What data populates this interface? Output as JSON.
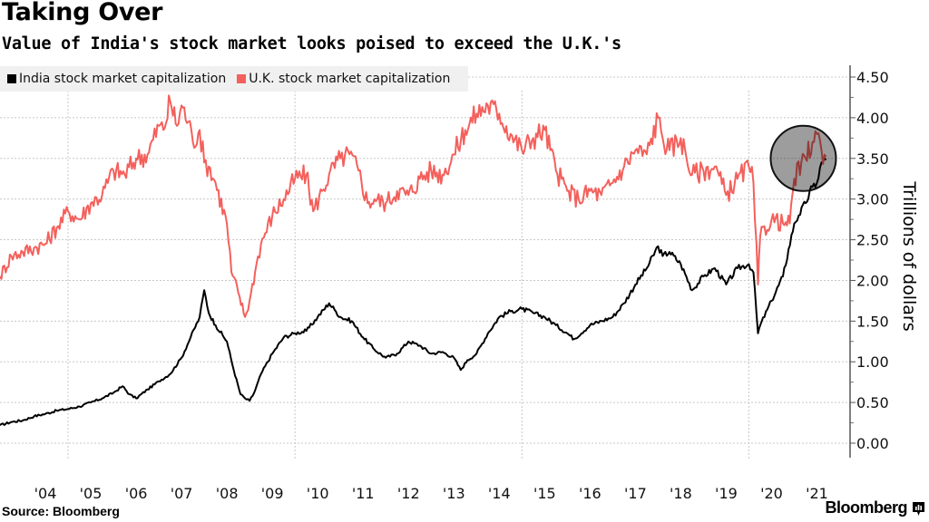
{
  "header": {
    "title": "Taking Over",
    "subtitle": "Value of India's stock market looks poised to exceed the U.K.'s"
  },
  "footer": {
    "source": "Source: Bloomberg",
    "brand": "Bloomberg",
    "brand_icon": "bloomberg-chart-icon"
  },
  "colors": {
    "india": "#000000",
    "uk": "#f4605c",
    "highlight_fill": "#8c8c8c",
    "highlight_stroke": "#111111",
    "grid": "#c8c8c8",
    "legend_bg": "#f0f0f0"
  },
  "chart_data": {
    "type": "line",
    "title": "Taking Over",
    "subtitle": "Value of India's stock market looks poised to exceed the U.K.'s",
    "xlabel": "",
    "ylabel": "Trillions of dollars",
    "ylim": [
      0,
      4.5
    ],
    "xlim": [
      2003.5,
      2021.85
    ],
    "grid": true,
    "legend_position": "top-left",
    "y_ticks": [
      "0.00",
      "0.50",
      "1.00",
      "1.50",
      "2.00",
      "2.50",
      "3.00",
      "3.50",
      "4.00",
      "4.50"
    ],
    "y_tick_values": [
      0,
      0.5,
      1,
      1.5,
      2,
      2.5,
      3,
      3.5,
      4,
      4.5
    ],
    "x_ticks": [
      "'04",
      "'05",
      "'06",
      "'07",
      "'08",
      "'09",
      "'10",
      "'11",
      "'12",
      "'13",
      "'14",
      "'15",
      "'16",
      "'17",
      "'18",
      "'19",
      "'20",
      "'21"
    ],
    "x_tick_years": [
      2004,
      2005,
      2006,
      2007,
      2008,
      2009,
      2010,
      2011,
      2012,
      2013,
      2014,
      2015,
      2016,
      2017,
      2018,
      2019,
      2020,
      2021
    ],
    "annotation": {
      "type": "circle-highlight",
      "center_x_year": 2021.2,
      "center_y_value": 3.5,
      "description": "Gray circle highlighting the 2021 convergence"
    },
    "series": [
      {
        "name": "India stock market capitalization",
        "color": "#000000",
        "x": [
          2003.5,
          2003.75,
          2004.0,
          2004.25,
          2004.5,
          2004.75,
          2005.0,
          2005.25,
          2005.5,
          2005.75,
          2006.0,
          2006.2,
          2006.35,
          2006.5,
          2006.75,
          2007.0,
          2007.25,
          2007.5,
          2007.7,
          2007.9,
          2008.0,
          2008.1,
          2008.25,
          2008.5,
          2008.65,
          2008.8,
          2008.9,
          2009.0,
          2009.1,
          2009.25,
          2009.5,
          2009.75,
          2010.0,
          2010.25,
          2010.5,
          2010.75,
          2010.9,
          2011.0,
          2011.25,
          2011.5,
          2011.75,
          2012.0,
          2012.25,
          2012.5,
          2012.75,
          2013.0,
          2013.25,
          2013.5,
          2013.65,
          2013.8,
          2014.0,
          2014.25,
          2014.5,
          2014.75,
          2015.0,
          2015.25,
          2015.5,
          2015.75,
          2016.0,
          2016.15,
          2016.5,
          2016.75,
          2017.0,
          2017.25,
          2017.5,
          2017.75,
          2018.0,
          2018.1,
          2018.25,
          2018.5,
          2018.75,
          2019.0,
          2019.25,
          2019.5,
          2019.75,
          2020.0,
          2020.1,
          2020.2,
          2020.25,
          2020.5,
          2020.75,
          2021.0,
          2021.1,
          2021.25,
          2021.4,
          2021.5,
          2021.6,
          2021.7
        ],
        "values": [
          0.22,
          0.26,
          0.28,
          0.33,
          0.36,
          0.4,
          0.42,
          0.45,
          0.5,
          0.55,
          0.62,
          0.7,
          0.6,
          0.55,
          0.66,
          0.76,
          0.85,
          1.05,
          1.3,
          1.55,
          1.88,
          1.6,
          1.45,
          1.25,
          0.9,
          0.6,
          0.55,
          0.52,
          0.62,
          0.85,
          1.1,
          1.3,
          1.35,
          1.38,
          1.55,
          1.72,
          1.62,
          1.55,
          1.5,
          1.3,
          1.15,
          1.05,
          1.1,
          1.25,
          1.2,
          1.1,
          1.12,
          1.05,
          0.9,
          1.02,
          1.1,
          1.35,
          1.55,
          1.62,
          1.65,
          1.6,
          1.55,
          1.45,
          1.35,
          1.28,
          1.45,
          1.5,
          1.55,
          1.72,
          1.95,
          2.15,
          2.42,
          2.3,
          2.35,
          2.2,
          1.88,
          2.05,
          2.15,
          1.95,
          2.15,
          2.2,
          2.1,
          1.35,
          1.45,
          1.75,
          2.05,
          2.7,
          2.8,
          2.95,
          3.15,
          3.2,
          3.45,
          3.48
        ]
      },
      {
        "name": "U.K. stock market capitalization",
        "color": "#f4605c",
        "x": [
          2003.5,
          2003.75,
          2004.0,
          2004.25,
          2004.5,
          2004.75,
          2005.0,
          2005.25,
          2005.5,
          2005.75,
          2006.0,
          2006.25,
          2006.5,
          2006.75,
          2007.0,
          2007.1,
          2007.25,
          2007.4,
          2007.5,
          2007.65,
          2007.75,
          2007.9,
          2008.0,
          2008.1,
          2008.25,
          2008.5,
          2008.6,
          2008.75,
          2008.9,
          2009.0,
          2009.15,
          2009.25,
          2009.5,
          2009.75,
          2010.0,
          2010.25,
          2010.4,
          2010.6,
          2010.75,
          2011.0,
          2011.2,
          2011.4,
          2011.6,
          2011.75,
          2012.0,
          2012.25,
          2012.5,
          2012.75,
          2013.0,
          2013.25,
          2013.5,
          2013.75,
          2014.0,
          2014.25,
          2014.5,
          2014.75,
          2015.0,
          2015.25,
          2015.5,
          2015.75,
          2016.0,
          2016.25,
          2016.5,
          2016.75,
          2017.0,
          2017.25,
          2017.5,
          2017.75,
          2018.0,
          2018.1,
          2018.25,
          2018.5,
          2018.75,
          2019.0,
          2019.25,
          2019.5,
          2019.75,
          2020.0,
          2020.1,
          2020.2,
          2020.25,
          2020.5,
          2020.75,
          2020.9,
          2021.0,
          2021.25,
          2021.4,
          2021.5,
          2021.6,
          2021.7
        ],
        "values": [
          2.05,
          2.3,
          2.35,
          2.4,
          2.45,
          2.65,
          2.85,
          2.75,
          2.95,
          3.05,
          3.35,
          3.3,
          3.5,
          3.55,
          3.9,
          3.85,
          4.2,
          3.9,
          4.15,
          3.95,
          3.7,
          3.85,
          3.45,
          3.4,
          3.2,
          2.7,
          2.1,
          1.85,
          1.55,
          1.75,
          2.2,
          2.45,
          2.8,
          3.0,
          3.25,
          3.3,
          2.85,
          3.1,
          3.3,
          3.5,
          3.55,
          3.35,
          2.95,
          3.0,
          2.95,
          3.1,
          3.05,
          3.25,
          3.35,
          3.3,
          3.55,
          3.85,
          4.05,
          4.15,
          4.05,
          3.8,
          3.6,
          3.75,
          3.85,
          3.35,
          3.1,
          3.0,
          3.1,
          3.05,
          3.2,
          3.4,
          3.6,
          3.55,
          4.0,
          3.75,
          3.6,
          3.75,
          3.3,
          3.35,
          3.4,
          3.05,
          3.25,
          3.4,
          3.2,
          1.95,
          2.55,
          2.75,
          2.7,
          2.7,
          3.25,
          3.5,
          3.7,
          3.8,
          3.6,
          3.52
        ]
      }
    ]
  }
}
